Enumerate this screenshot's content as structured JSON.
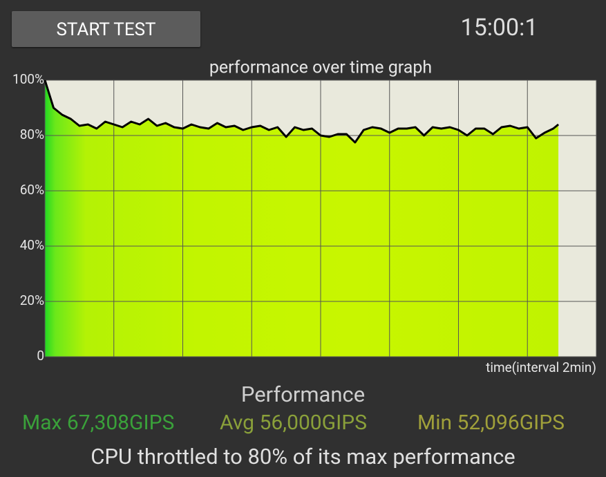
{
  "button": "START TEST",
  "timer": "15:00:1",
  "chart_data": {
    "type": "line",
    "title": "performance over time graph",
    "x_label": "time(interval 2min)",
    "x": [
      0,
      0.25,
      0.5,
      0.75,
      1,
      1.25,
      1.5,
      1.75,
      2,
      2.25,
      2.5,
      2.75,
      3,
      3.25,
      3.5,
      3.75,
      4,
      4.25,
      4.5,
      4.75,
      5,
      5.25,
      5.5,
      5.75,
      6,
      6.25,
      6.5,
      6.75,
      7,
      7.25,
      7.5,
      7.75,
      8,
      8.25,
      8.5,
      8.75,
      9,
      9.25,
      9.5,
      9.75,
      10,
      10.25,
      10.5,
      10.75,
      11,
      11.25,
      11.5,
      11.75,
      12,
      12.25,
      12.5,
      12.75,
      13,
      13.25,
      13.5,
      13.75,
      14,
      14.25,
      14.5,
      14.75,
      14.9
    ],
    "series": [
      {
        "color": "#000000",
        "values": [
          100,
          90,
          87.5,
          86,
          83.5,
          84,
          82.5,
          85,
          84,
          83,
          85,
          84,
          86,
          83.5,
          84.5,
          83,
          82.5,
          84,
          83,
          82.5,
          84.5,
          83,
          83.5,
          82,
          83,
          83.5,
          82,
          83,
          79.5,
          83,
          82,
          82.5,
          80,
          79.5,
          80.5,
          80.5,
          77.5,
          82,
          83,
          82.5,
          81,
          82.5,
          82.5,
          83,
          80,
          83,
          82.5,
          83,
          82,
          80,
          82.5,
          82.5,
          80.5,
          83,
          83.5,
          82.5,
          83,
          79,
          81,
          82.5,
          84
        ]
      }
    ],
    "xlim": [
      0,
      16
    ],
    "xticks": [
      0,
      2,
      4,
      6,
      8,
      10,
      12,
      14,
      16
    ],
    "ylim": [
      0,
      100
    ],
    "yticks": [
      0,
      {
        "value": 20,
        "label": "20%"
      },
      {
        "value": 40,
        "label": "40%"
      },
      {
        "value": 60,
        "label": "60%"
      },
      {
        "value": 80,
        "label": "80%"
      },
      {
        "value": 100,
        "label": "100%"
      }
    ],
    "grid": true
  },
  "summary": {
    "heading": "Performance",
    "max": "Max 67,308GIPS",
    "avg": "Avg 56,000GIPS",
    "min": "Min 52,096GIPS",
    "note": "CPU throttled to 80% of its max performance"
  }
}
